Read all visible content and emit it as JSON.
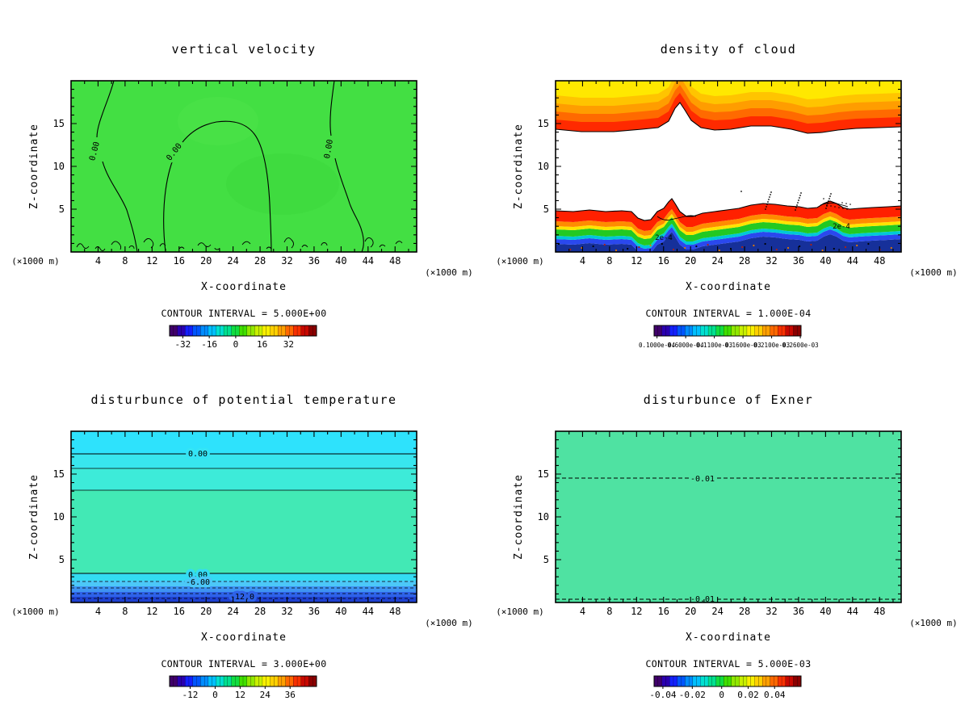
{
  "layout": {
    "grid": "2x2",
    "background": "#ffffff"
  },
  "colors": {
    "velocity_fill": "#43df43",
    "theta_mid_fill": "#42e9b5",
    "exner_fill": "#4fe2a2",
    "contour_line": "#000000"
  },
  "panels": [
    {
      "id": "vertical-velocity",
      "title": "vertical velocity",
      "ylabel": "Z-coordinate",
      "xlabel": "X-coordinate",
      "unit_left": "(×1000 m)",
      "unit_right": "(×1000 m)",
      "contour_interval": "CONTOUR INTERVAL = 5.000E+00",
      "x_ticks": [
        4,
        8,
        12,
        16,
        20,
        24,
        28,
        32,
        36,
        40,
        44,
        48
      ],
      "y_ticks": [
        5,
        10,
        15
      ],
      "colorbar": {
        "labels": [
          "-32",
          "-16",
          "0",
          "16",
          "32"
        ],
        "fracs": [
          0.09,
          0.27,
          0.45,
          0.63,
          0.81
        ]
      },
      "contour_labels": [
        "0.00",
        "0.00",
        "0.00"
      ]
    },
    {
      "id": "density-of-cloud",
      "title": "density of cloud",
      "ylabel": "Z-coordinate",
      "xlabel": "X-coordinate",
      "unit_left": "(×1000 m)",
      "unit_right": "(×1000 m)",
      "contour_interval": "CONTOUR INTERVAL = 1.000E-04",
      "x_ticks": [
        4,
        8,
        12,
        16,
        20,
        24,
        28,
        32,
        36,
        40,
        44,
        48
      ],
      "y_ticks": [
        5,
        10,
        15
      ],
      "colorbar": {
        "labels": [
          "0.1000e-04",
          "0.6000e-04",
          "0.1100e-03",
          "0.1600e-03",
          "0.2100e-03",
          "0.2600e-03"
        ],
        "fracs": [
          0.02,
          0.215,
          0.41,
          0.605,
          0.8,
          0.995
        ]
      },
      "contour_labels": [
        "2e-4",
        "2e-4"
      ]
    },
    {
      "id": "disturbunce-of-potential-temperature",
      "title": "disturbunce of potential temperature",
      "ylabel": "Z-coordinate",
      "xlabel": "X-coordinate",
      "unit_left": "(×1000 m)",
      "unit_right": "(×1000 m)",
      "contour_interval": "CONTOUR INTERVAL = 3.000E+00",
      "x_ticks": [
        4,
        8,
        12,
        16,
        20,
        24,
        28,
        32,
        36,
        40,
        44,
        48
      ],
      "y_ticks": [
        5,
        10,
        15
      ],
      "colorbar": {
        "labels": [
          "-12",
          "0",
          "12",
          "24",
          "36"
        ],
        "fracs": [
          0.14,
          0.31,
          0.48,
          0.65,
          0.82
        ]
      },
      "contour_labels": [
        "0.00",
        "0.00",
        "-6.00",
        "-12.0"
      ]
    },
    {
      "id": "disturbunce-of-exner",
      "title": "disturbunce of Exner",
      "ylabel": "Z-coordinate",
      "xlabel": "X-coordinate",
      "unit_left": "(×1000 m)",
      "unit_right": "(×1000 m)",
      "contour_interval": "CONTOUR INTERVAL = 5.000E-03",
      "x_ticks": [
        4,
        8,
        12,
        16,
        20,
        24,
        28,
        32,
        36,
        40,
        44,
        48
      ],
      "y_ticks": [
        5,
        10,
        15
      ],
      "colorbar": {
        "labels": [
          "-0.04",
          "-0.02",
          "0",
          "0.02",
          "0.04"
        ],
        "fracs": [
          0.06,
          0.26,
          0.46,
          0.64,
          0.82
        ]
      },
      "contour_labels": [
        "-0.01",
        "-0.01"
      ]
    }
  ],
  "chart_data": [
    {
      "type": "heatmap",
      "title": "vertical velocity",
      "xlabel": "X-coordinate (×1000 m)",
      "ylabel": "Z-coordinate (×1000 m)",
      "x_range": [
        0,
        51.2
      ],
      "y_range": [
        0,
        20
      ],
      "x_ticks": [
        4,
        8,
        12,
        16,
        20,
        24,
        28,
        32,
        36,
        40,
        44,
        48
      ],
      "y_ticks": [
        5,
        10,
        15
      ],
      "contour_interval": 5.0,
      "labeled_contour_levels": [
        0.0,
        0.0,
        0.0
      ],
      "colorbar_ticks": [
        -32,
        -16,
        0,
        16,
        32
      ],
      "palette": "rainbow",
      "legend_position": "bottom",
      "grid": false,
      "summary": "Field is approximately 0 everywhere (uniform green). Three labeled 0.00 contours: one descending near x≈4-10, a broad arch between x≈14-30 reaching z≈19, one near x≈39-44; many small noisy zero contours along the surface (z<2)."
    },
    {
      "type": "heatmap",
      "title": "density of cloud",
      "xlabel": "X-coordinate (×1000 m)",
      "ylabel": "Z-coordinate (×1000 m)",
      "x_range": [
        0,
        51.2
      ],
      "y_range": [
        0,
        20
      ],
      "x_ticks": [
        4,
        8,
        12,
        16,
        20,
        24,
        28,
        32,
        36,
        40,
        44,
        48
      ],
      "y_ticks": [
        5,
        10,
        15
      ],
      "contour_interval": 0.0001,
      "labeled_contour_levels": [
        "2e-4",
        "2e-4"
      ],
      "colorbar_ticks": [
        "0.1000e-04",
        "0.6000e-04",
        "0.1100e-03",
        "0.1600e-03",
        "0.2100e-03",
        "0.2600e-03"
      ],
      "palette": "rainbow",
      "legend_position": "bottom",
      "grid": false,
      "summary": "Upper cloud deck from z≈13 to 20 (yellow at top grading through orange to red at its wavy base, with an upward peak near x≈18). Clear (white) mid-levels. Low cloud below z≈5: red/orange top grading to green, cyan, blue and dark navy at the surface, with black speckled high-density patches near x≈28-38 and 2e-4 contours near x≈17 and x≈42."
    },
    {
      "type": "heatmap",
      "title": "disturbunce of potential temperature",
      "xlabel": "X-coordinate (×1000 m)",
      "ylabel": "Z-coordinate (×1000 m)",
      "x_range": [
        0,
        51.2
      ],
      "y_range": [
        0,
        20
      ],
      "x_ticks": [
        4,
        8,
        12,
        16,
        20,
        24,
        28,
        32,
        36,
        40,
        44,
        48
      ],
      "y_ticks": [
        5,
        10,
        15
      ],
      "contour_interval": 3.0,
      "labeled_contour_levels": [
        0.0,
        0.0,
        -6.0,
        -12.0
      ],
      "colorbar_ticks": [
        -12,
        0,
        12,
        24,
        36
      ],
      "palette": "rainbow",
      "legend_position": "bottom",
      "grid": false,
      "summary": "Horizontally uniform layers: cyan band above z≈17 (0.00 contour near z≈17.5), thin solid contours near z≈15.5 and 13, broad teal-green layer through mid-levels, then 0.00 solid contour near z≈3.3, dashed -6.00 contour near z≈2.4, dashed -12.0 near z≈0.7, grading to dark blue minimum at the surface."
    },
    {
      "type": "heatmap",
      "title": "disturbunce of Exner",
      "xlabel": "X-coordinate (×1000 m)",
      "ylabel": "Z-coordinate (×1000 m)",
      "x_range": [
        0,
        51.2
      ],
      "y_range": [
        0,
        20
      ],
      "x_ticks": [
        4,
        8,
        12,
        16,
        20,
        24,
        28,
        32,
        36,
        40,
        44,
        48
      ],
      "y_ticks": [
        5,
        10,
        15
      ],
      "contour_interval": 0.005,
      "labeled_contour_levels": [
        -0.01,
        -0.01
      ],
      "colorbar_ticks": [
        -0.04,
        -0.02,
        0,
        0.02,
        0.04
      ],
      "palette": "rainbow",
      "legend_position": "bottom",
      "grid": false,
      "summary": "Nearly uniform field (flat green). Two horizontal dashed -0.01 contours: one near z≈14.5 and one just above the surface."
    }
  ]
}
